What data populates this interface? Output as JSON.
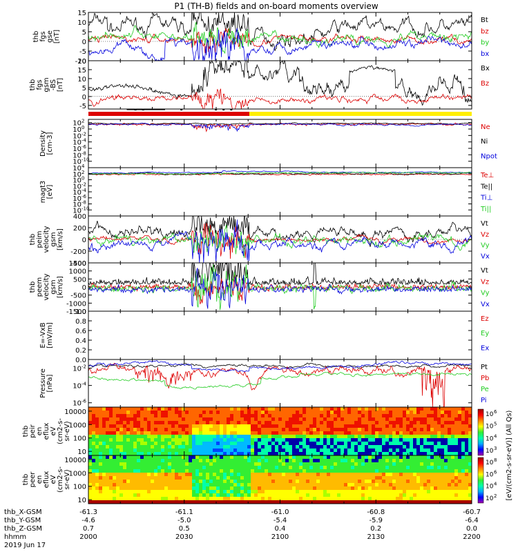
{
  "title": "P1 (TH-B) fields and on-board moments overview",
  "colors": {
    "black": "#000000",
    "red": "#dd0000",
    "green": "#22cc22",
    "blue": "#0000dd",
    "yellow": "#ffee00"
  },
  "chart_data": [
    {
      "id": "fgs",
      "type": "line",
      "ylabel": [
        "thb",
        "fgs",
        "gse",
        "[nT]"
      ],
      "ylim": [
        -10,
        15
      ],
      "yticks": [
        -10,
        -5,
        0,
        5,
        10,
        15
      ],
      "ytick_labels": [
        "-10",
        "-5",
        "0",
        "5",
        "10",
        "15"
      ],
      "series": [
        {
          "name": "Bt",
          "color": "#000000",
          "kind": "fgs_bt"
        },
        {
          "name": "bz",
          "color": "#dd0000",
          "kind": "fgs_bz"
        },
        {
          "name": "by",
          "color": "#22cc22",
          "kind": "fgs_by"
        },
        {
          "name": "bx",
          "color": "#0000dd",
          "kind": "fgs_bx"
        }
      ]
    },
    {
      "id": "fgs_gsm",
      "type": "line",
      "ylabel": [
        "thb",
        "fgs",
        "gsm",
        "-BS",
        "[nT]"
      ],
      "ylim": [
        -7,
        20
      ],
      "yticks": [
        -5,
        0,
        5,
        10,
        15,
        20
      ],
      "ytick_labels": [
        "-5",
        "0",
        "5",
        "10",
        "15",
        "20"
      ],
      "series": [
        {
          "name": "Bx",
          "color": "#000000",
          "kind": "gsm_bx"
        },
        {
          "name": "Bz",
          "color": "#dd0000",
          "kind": "gsm_bz"
        }
      ]
    },
    {
      "id": "density",
      "type": "line",
      "log": true,
      "ylabel": [
        "Density",
        "[cm-3]"
      ],
      "ylim_exp": [
        -12,
        3
      ],
      "ytick_exps": [
        -10,
        -8,
        -6,
        -4,
        -2,
        0,
        2
      ],
      "ytick_labels": [
        "10-10",
        "10-8",
        "10-6",
        "10-4",
        "10-2",
        "100",
        "102"
      ],
      "series": [
        {
          "name": "Ne",
          "color": "#dd0000",
          "kind": "dens_ne"
        },
        {
          "name": "Ni",
          "color": "#000000",
          "kind": "dens_ni"
        },
        {
          "name": "Npot",
          "color": "#0000dd",
          "kind": "dens_np"
        }
      ]
    },
    {
      "id": "temp",
      "type": "line",
      "log": true,
      "ylabel": [
        "magt3",
        "[eV]"
      ],
      "ylim_exp": [
        -12,
        4
      ],
      "ytick_exps": [
        -10,
        -8,
        -6,
        -4,
        -2,
        0,
        2,
        4
      ],
      "ytick_labels": [
        "10-10",
        "10-8",
        "10-6",
        "10-4",
        "10-2",
        "100",
        "102",
        "104"
      ],
      "series": [
        {
          "name": "Te⊥",
          "color": "#dd0000",
          "kind": "te_perp"
        },
        {
          "name": "Te||",
          "color": "#000000",
          "kind": "te_par"
        },
        {
          "name": "Ti⊥",
          "color": "#0000dd",
          "kind": "ti_perp"
        },
        {
          "name": "Ti||",
          "color": "#22cc22",
          "kind": "ti_par"
        }
      ]
    },
    {
      "id": "peim_v",
      "type": "line",
      "ylabel": [
        "thb",
        "peim",
        "velocity",
        "gsm",
        "[km/s]"
      ],
      "ylim": [
        -400,
        400
      ],
      "yticks": [
        -400,
        -200,
        0,
        200,
        400
      ],
      "ytick_labels": [
        "-400",
        "-200",
        "0",
        "200",
        "400"
      ],
      "series": [
        {
          "name": "Vt",
          "color": "#000000",
          "kind": "vi_t"
        },
        {
          "name": "Vz",
          "color": "#dd0000",
          "kind": "vi_z"
        },
        {
          "name": "Vy",
          "color": "#22cc22",
          "kind": "vi_y"
        },
        {
          "name": "Vx",
          "color": "#0000dd",
          "kind": "vi_x"
        }
      ]
    },
    {
      "id": "peem_v",
      "type": "line",
      "ylabel": [
        "thb",
        "peem",
        "velocity",
        "gsm",
        "[km/s]"
      ],
      "ylim": [
        -1500,
        1500
      ],
      "yticks": [
        -1500,
        -1000,
        -500,
        0,
        500,
        1000,
        1500
      ],
      "ytick_labels": [
        "-1500",
        "-1000",
        "-500",
        "0",
        "500",
        "1000",
        "1500"
      ],
      "series": [
        {
          "name": "Vt",
          "color": "#000000",
          "kind": "ve_t"
        },
        {
          "name": "Vz",
          "color": "#dd0000",
          "kind": "ve_z"
        },
        {
          "name": "Vy",
          "color": "#22cc22",
          "kind": "ve_y"
        },
        {
          "name": "Vx",
          "color": "#0000dd",
          "kind": "ve_x"
        }
      ]
    },
    {
      "id": "efield",
      "type": "line",
      "ylabel": [
        "E=-VxB",
        "[mV/m]"
      ],
      "ylim": [
        0,
        1
      ],
      "yticks": [
        0,
        0.2,
        0.4,
        0.6,
        0.8,
        1.0
      ],
      "ytick_labels": [
        "0.0",
        "0.2",
        "0.4",
        "0.6",
        "0.8",
        "1.0"
      ],
      "series": [
        {
          "name": "Ez",
          "color": "#dd0000",
          "kind": "none"
        },
        {
          "name": "Ey",
          "color": "#22cc22",
          "kind": "none"
        },
        {
          "name": "Ex",
          "color": "#0000dd",
          "kind": "none"
        }
      ]
    },
    {
      "id": "pressure",
      "type": "line",
      "log": true,
      "ylabel": [
        "Pressure",
        "[nPa]"
      ],
      "ylim_exp": [
        -6.5,
        -1
      ],
      "ytick_exps": [
        -6,
        -4,
        -2
      ],
      "ytick_labels": [
        "10-6",
        "10-4",
        "10-2"
      ],
      "series": [
        {
          "name": "Pt",
          "color": "#000000",
          "kind": "p_t"
        },
        {
          "name": "Pb",
          "color": "#dd0000",
          "kind": "p_b"
        },
        {
          "name": "Pe",
          "color": "#22cc22",
          "kind": "p_e"
        },
        {
          "name": "Pi",
          "color": "#0000dd",
          "kind": "p_i"
        }
      ]
    },
    {
      "id": "peir_spec",
      "type": "heatmap",
      "ylabel": [
        "thb",
        "peir",
        "en",
        "eflux",
        "eV",
        "(cm2-s-",
        "sr-eV)"
      ],
      "yticks": [
        10,
        100,
        1000,
        10000
      ],
      "ytick_labels": [
        "10",
        "100",
        "1000",
        "10000"
      ],
      "colorbar_labels": [
        "103",
        "104",
        "105",
        "106"
      ]
    },
    {
      "id": "peer_spec",
      "type": "heatmap",
      "ylabel": [
        "thb",
        "peer",
        "en",
        "eflux",
        "eV",
        "(cm2-s-",
        "sr-eV)"
      ],
      "yticks": [
        10,
        100,
        1000,
        10000
      ],
      "ytick_labels": [
        "10",
        "100",
        "1000",
        "10000"
      ],
      "colorbar_labels": [
        "102",
        "104",
        "106",
        "108"
      ]
    }
  ],
  "colorbar_unit": "[eV/(cm2-s-sr-eV)] (All Qs)",
  "xaxis": {
    "rows": [
      {
        "label": "thb_X-GSM",
        "values": [
          "-61.3",
          "-61.1",
          "-61.0",
          "-60.8",
          "-60.7"
        ]
      },
      {
        "label": "thb_Y-GSM",
        "values": [
          "-4.6",
          "-5.0",
          "-5.4",
          "-5.9",
          "-6.4"
        ]
      },
      {
        "label": "thb_Z-GSM",
        "values": [
          "0.7",
          "0.5",
          "0.4",
          "0.2",
          "0.0"
        ]
      },
      {
        "label": "hhmm",
        "values": [
          "2000",
          "2030",
          "2100",
          "2130",
          "2200"
        ]
      }
    ],
    "date": "2019 Jun 17"
  }
}
